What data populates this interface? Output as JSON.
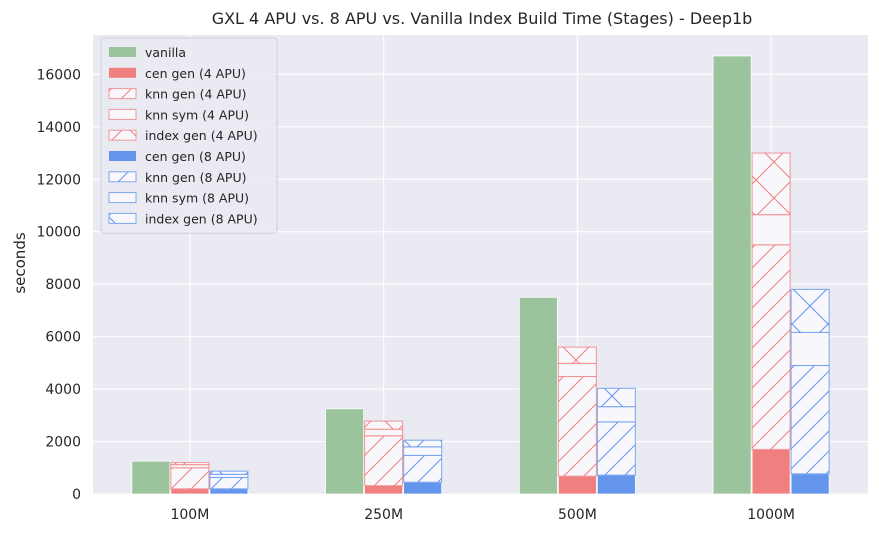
{
  "chart_data": {
    "type": "bar",
    "title": "GXL 4 APU vs. 8 APU vs. Vanilla Index Build Time (Stages) - Deep1b",
    "xlabel": "",
    "ylabel": "seconds",
    "ylim": [
      0,
      17500
    ],
    "yticks": [
      0,
      2000,
      4000,
      6000,
      8000,
      10000,
      12000,
      14000,
      16000
    ],
    "categories": [
      "100M",
      "250M",
      "500M",
      "1000M"
    ],
    "grid": true,
    "legend_position": "top-left",
    "groups": [
      {
        "name": "vanilla",
        "series": [
          {
            "name": "vanilla",
            "values": [
              1250,
              3250,
              7500,
              16700
            ],
            "color": "#9cc49c",
            "pattern": "solid"
          }
        ]
      },
      {
        "name": "4 APU",
        "series": [
          {
            "name": "cen gen (4 APU)",
            "values": [
              200,
              320,
              680,
              1700
            ],
            "color": "#f08080",
            "pattern": "solid"
          },
          {
            "name": "knn gen (4 APU)",
            "values": [
              800,
              1900,
              3800,
              7800
            ],
            "color": "#f08080",
            "pattern": "diagonal"
          },
          {
            "name": "knn sym (4 APU)",
            "values": [
              120,
              250,
              500,
              1150
            ],
            "color": "#f08080",
            "pattern": "none"
          },
          {
            "name": "index gen (4 APU)",
            "values": [
              80,
              310,
              620,
              2350
            ],
            "color": "#f08080",
            "pattern": "cross"
          }
        ]
      },
      {
        "name": "8 APU",
        "series": [
          {
            "name": "cen gen (8 APU)",
            "values": [
              200,
              450,
              720,
              770
            ],
            "color": "#6495ed",
            "pattern": "solid"
          },
          {
            "name": "knn gen (8 APU)",
            "values": [
              430,
              1020,
              2030,
              4130
            ],
            "color": "#6495ed",
            "pattern": "diagonal"
          },
          {
            "name": "knn sym (8 APU)",
            "values": [
              120,
              330,
              580,
              1260
            ],
            "color": "#6495ed",
            "pattern": "none"
          },
          {
            "name": "index gen (8 APU)",
            "values": [
              120,
              250,
              700,
              1640
            ],
            "color": "#6495ed",
            "pattern": "cross"
          }
        ]
      }
    ],
    "legend": [
      {
        "label": "vanilla",
        "color": "#9cc49c",
        "pattern": "solid"
      },
      {
        "label": "cen gen (4 APU)",
        "color": "#f08080",
        "pattern": "solid"
      },
      {
        "label": "knn gen (4 APU)",
        "color": "#f08080",
        "pattern": "diagonal"
      },
      {
        "label": "knn sym (4 APU)",
        "color": "#f08080",
        "pattern": "none"
      },
      {
        "label": "index gen (4 APU)",
        "color": "#f08080",
        "pattern": "cross"
      },
      {
        "label": "cen gen (8 APU)",
        "color": "#6495ed",
        "pattern": "solid"
      },
      {
        "label": "knn gen (8 APU)",
        "color": "#6495ed",
        "pattern": "diagonal"
      },
      {
        "label": "knn sym (8 APU)",
        "color": "#6495ed",
        "pattern": "none"
      },
      {
        "label": "index gen (8 APU)",
        "color": "#6495ed",
        "pattern": "cross"
      }
    ],
    "colors": {
      "background": "#eaeaf2",
      "grid": "#ffffff"
    }
  }
}
